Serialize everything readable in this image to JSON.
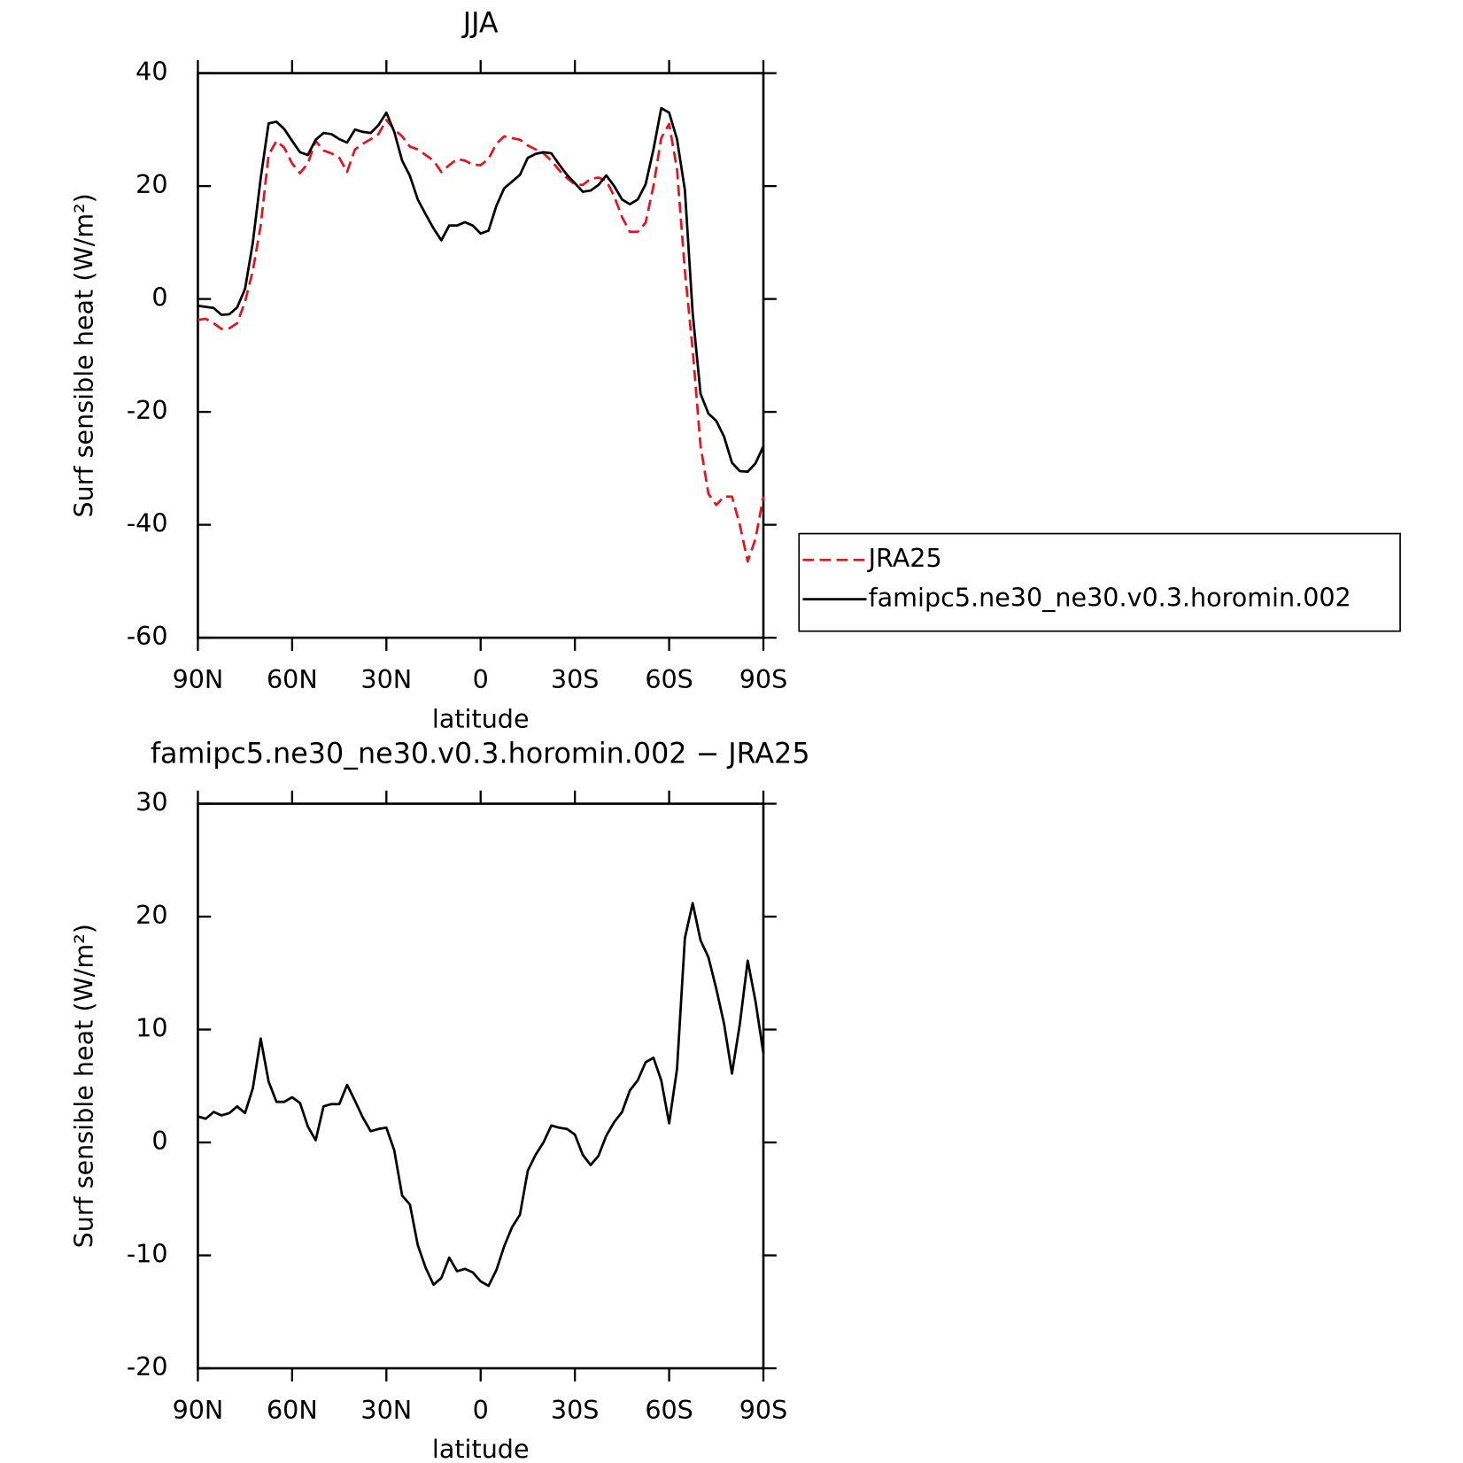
{
  "chart_data": [
    {
      "type": "line",
      "title": "JJA",
      "xlabel": "latitude",
      "ylabel": "Surf sensible heat (W/m²)",
      "x": [
        90,
        87.5,
        85,
        82.5,
        80,
        77.5,
        75,
        72.5,
        70,
        67.5,
        65,
        62.5,
        60,
        57.5,
        55,
        52.5,
        50,
        47.5,
        45,
        42.5,
        40,
        37.5,
        35,
        32.5,
        30,
        27.5,
        25,
        22.5,
        20,
        17.5,
        15,
        12.5,
        10,
        7.5,
        5,
        2.5,
        0,
        -2.5,
        -5,
        -7.5,
        -10,
        -12.5,
        -15,
        -17.5,
        -20,
        -22.5,
        -25,
        -27.5,
        -30,
        -32.5,
        -35,
        -37.5,
        -40,
        -42.5,
        -45,
        -47.5,
        -50,
        -52.5,
        -55,
        -57.5,
        -60,
        -62.5,
        -65,
        -67.5,
        -70,
        -72.5,
        -75,
        -77.5,
        -80,
        -82.5,
        -85,
        -87.5,
        -90
      ],
      "series": [
        {
          "name": "JRA25",
          "color": "#e8141c",
          "linestyle": "dashed",
          "values": [
            -3.7,
            -3.5,
            -4.3,
            -5.3,
            -5.2,
            -4.3,
            -0.5,
            5,
            13,
            25.5,
            28,
            26.8,
            24,
            22.3,
            24,
            28,
            26.3,
            25.8,
            25,
            22.5,
            26.5,
            27.5,
            28.3,
            29.2,
            31.7,
            30,
            28.8,
            27,
            26.5,
            25.5,
            24.5,
            22.5,
            23.7,
            24.8,
            24.5,
            23.8,
            23.7,
            24.8,
            27.5,
            28.8,
            28.5,
            28.2,
            27.2,
            26.5,
            25.8,
            24.5,
            22.8,
            21.4,
            20.3,
            20.2,
            21.3,
            21.5,
            21,
            18.2,
            14.5,
            11.9,
            11.9,
            13.5,
            20,
            28.5,
            31,
            23,
            5,
            -9,
            -26,
            -34.5,
            -36.5,
            -35,
            -35,
            -40,
            -46.5,
            -42.5,
            -35
          ]
        },
        {
          "name": "famipc5.ne30_ne30.v0.3.horomin.002",
          "color": "#000000",
          "linestyle": "solid",
          "values": [
            -1.2,
            -1.4,
            -1.6,
            -2.8,
            -2.7,
            -1.5,
            1.8,
            10,
            21.4,
            31.1,
            31.4,
            30.1,
            28,
            26,
            25.5,
            28.2,
            29.4,
            29.2,
            28.3,
            27.7,
            30,
            29.6,
            29.4,
            30.8,
            33,
            29.6,
            24.5,
            21.8,
            17.6,
            15,
            12.5,
            10.4,
            13,
            13,
            13.6,
            13,
            11.6,
            12.1,
            16.5,
            19.6,
            20.8,
            22,
            25,
            25.7,
            26,
            25.8,
            23.8,
            22,
            20.5,
            19,
            19.2,
            20.2,
            21.9,
            20,
            17.6,
            16.8,
            17.6,
            20.3,
            26.5,
            33.8,
            33,
            28.3,
            19.3,
            -2.5,
            -16.8,
            -20.3,
            -21.6,
            -24.4,
            -29,
            -30.5,
            -30.6,
            -29.1,
            -26.1
          ]
        }
      ],
      "xlim": [
        90,
        -90
      ],
      "xticks": [
        {
          "value": 90,
          "label": "90N"
        },
        {
          "value": 60,
          "label": "60N"
        },
        {
          "value": 30,
          "label": "30N"
        },
        0,
        {
          "value": -30,
          "label": "30S"
        },
        {
          "value": -60,
          "label": "60S"
        },
        {
          "value": -90,
          "label": "90S"
        }
      ],
      "ylim": [
        -60,
        40
      ],
      "yticks": [
        -60,
        -40,
        -20,
        0,
        20,
        40
      ],
      "legend": "right"
    },
    {
      "type": "line",
      "title": "famipc5.ne30_ne30.v0.3.horomin.002 − JRA25",
      "xlabel": "latitude",
      "ylabel": "Surf sensible heat (W/m²)",
      "x": [
        90,
        87.5,
        85,
        82.5,
        80,
        77.5,
        75,
        72.5,
        70,
        67.5,
        65,
        62.5,
        60,
        57.5,
        55,
        52.5,
        50,
        47.5,
        45,
        42.5,
        40,
        37.5,
        35,
        32.5,
        30,
        27.5,
        25,
        22.5,
        20,
        17.5,
        15,
        12.5,
        10,
        7.5,
        5,
        2.5,
        0,
        -2.5,
        -5,
        -7.5,
        -10,
        -12.5,
        -15,
        -17.5,
        -20,
        -22.5,
        -25,
        -27.5,
        -30,
        -32.5,
        -35,
        -37.5,
        -40,
        -42.5,
        -45,
        -47.5,
        -50,
        -52.5,
        -55,
        -57.5,
        -60,
        -62.5,
        -65,
        -67.5,
        -70,
        -72.5,
        -75,
        -77.5,
        -80,
        -82.5,
        -85,
        -87.5,
        -90
      ],
      "values": [
        2.3,
        2.1,
        2.7,
        2.4,
        2.6,
        3.2,
        2.6,
        4.8,
        9.2,
        5.4,
        3.6,
        3.6,
        4,
        3.5,
        1.4,
        0.2,
        3.2,
        3.4,
        3.4,
        5.1,
        3.7,
        2.2,
        1,
        1.2,
        1.3,
        -0.7,
        -4.7,
        -5.5,
        -9.1,
        -11.1,
        -12.6,
        -12,
        -10.2,
        -11.4,
        -11.2,
        -11.5,
        -12.3,
        -12.7,
        -11.3,
        -9.2,
        -7.5,
        -6.4,
        -2.5,
        -1.1,
        0,
        1.5,
        1.3,
        1.2,
        0.7,
        -1.1,
        -2,
        -1.2,
        0.6,
        1.8,
        2.7,
        4.6,
        5.5,
        7.1,
        7.5,
        5.5,
        1.7,
        6.5,
        18.1,
        21.2,
        17.9,
        16.4,
        13.6,
        10.5,
        6.1,
        10.5,
        16.1,
        12.5,
        7.9
      ],
      "color": "#000000",
      "xlim": [
        90,
        -90
      ],
      "xticks": [
        {
          "value": 90,
          "label": "90N"
        },
        {
          "value": 60,
          "label": "60N"
        },
        {
          "value": 30,
          "label": "30N"
        },
        0,
        {
          "value": -30,
          "label": "30S"
        },
        {
          "value": -60,
          "label": "60S"
        },
        {
          "value": -90,
          "label": "90S"
        }
      ],
      "ylim": [
        -20,
        30
      ],
      "yticks": [
        -20,
        -10,
        0,
        10,
        20,
        30
      ]
    }
  ]
}
